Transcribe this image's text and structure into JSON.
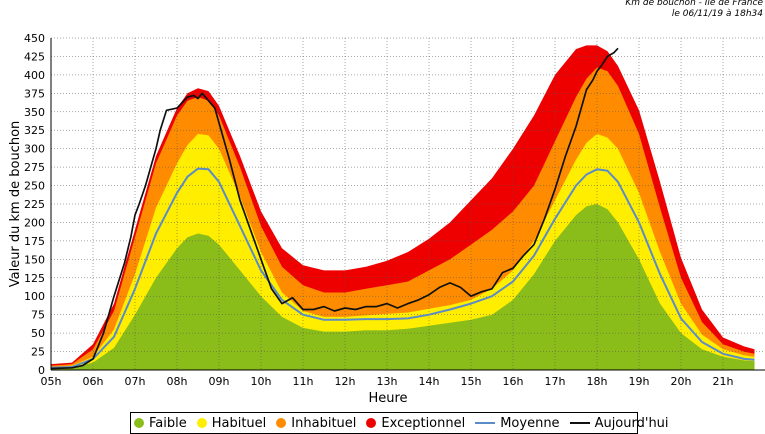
{
  "header": {
    "title": "Km de bouchon - Ile de France",
    "date": "le 06/11/19 à 18h34"
  },
  "chart_data": {
    "type": "area",
    "ylabel": "Valeur du  km de bouchon",
    "xlabel": "Heure",
    "xlim": [
      5,
      22
    ],
    "ylim": [
      0,
      450
    ],
    "y_ticks": [
      0,
      25,
      50,
      75,
      100,
      125,
      150,
      175,
      200,
      225,
      250,
      275,
      300,
      325,
      350,
      375,
      400,
      425,
      450
    ],
    "y_tick_labels": [
      "0",
      "25",
      "50",
      "75",
      "100",
      "125",
      "150",
      "175",
      "200",
      "225",
      "250",
      "275",
      "300",
      "325",
      "350",
      "375",
      "400",
      "425",
      "450"
    ],
    "x_ticks": [
      5,
      6,
      7,
      8,
      9,
      10,
      11,
      12,
      13,
      14,
      15,
      16,
      17,
      18,
      19,
      20,
      21
    ],
    "x_tick_labels": [
      "05h",
      "06h",
      "07h",
      "08h",
      "09h",
      "10h",
      "11h",
      "12h",
      "13h",
      "14h",
      "15h",
      "16h",
      "17h",
      "18h",
      "19h",
      "20h",
      "21h"
    ],
    "grid": true,
    "x": [
      5.0,
      5.5,
      6.0,
      6.5,
      7.0,
      7.5,
      8.0,
      8.25,
      8.5,
      8.75,
      9.0,
      9.5,
      10.0,
      10.5,
      11.0,
      11.5,
      12.0,
      12.5,
      13.0,
      13.5,
      14.0,
      14.5,
      15.0,
      15.5,
      16.0,
      16.5,
      17.0,
      17.5,
      17.75,
      18.0,
      18.25,
      18.5,
      19.0,
      19.5,
      20.0,
      20.5,
      21.0,
      21.5,
      21.75
    ],
    "series": [
      {
        "name": "Faible",
        "kind": "area",
        "color": "#8bbd1a",
        "values": [
          2,
          3,
          10,
          30,
          75,
          125,
          165,
          180,
          185,
          182,
          170,
          135,
          100,
          72,
          57,
          52,
          52,
          54,
          54,
          56,
          60,
          64,
          68,
          75,
          95,
          130,
          175,
          210,
          222,
          225,
          218,
          200,
          150,
          90,
          50,
          28,
          18,
          13,
          12
        ]
      },
      {
        "name": "Habituel",
        "kind": "area",
        "color": "#ffee00",
        "values": [
          4,
          6,
          18,
          55,
          130,
          220,
          280,
          305,
          320,
          318,
          300,
          235,
          160,
          105,
          80,
          72,
          72,
          74,
          76,
          78,
          83,
          88,
          95,
          110,
          135,
          175,
          230,
          285,
          308,
          320,
          315,
          300,
          240,
          160,
          90,
          48,
          28,
          20,
          18
        ]
      },
      {
        "name": "Inhabituel",
        "kind": "area",
        "color": "#ff8c00",
        "values": [
          6,
          8,
          28,
          80,
          180,
          280,
          345,
          365,
          370,
          365,
          345,
          275,
          195,
          140,
          115,
          105,
          105,
          110,
          115,
          120,
          135,
          150,
          170,
          190,
          215,
          250,
          310,
          370,
          395,
          410,
          405,
          385,
          320,
          220,
          125,
          65,
          35,
          25,
          22
        ]
      },
      {
        "name": "Exceptionnel",
        "kind": "area",
        "color": "#ee0000",
        "values": [
          8,
          10,
          35,
          90,
          190,
          290,
          355,
          375,
          382,
          378,
          358,
          290,
          215,
          165,
          142,
          135,
          135,
          140,
          148,
          160,
          178,
          200,
          230,
          260,
          300,
          345,
          400,
          435,
          440,
          440,
          432,
          412,
          352,
          255,
          152,
          82,
          44,
          32,
          28
        ]
      },
      {
        "name": "Moyenne",
        "kind": "line",
        "color": "#5b8cc7",
        "values": [
          3,
          4,
          15,
          45,
          110,
          185,
          240,
          262,
          273,
          272,
          255,
          195,
          135,
          95,
          75,
          68,
          68,
          69,
          69,
          70,
          75,
          82,
          90,
          100,
          120,
          155,
          205,
          250,
          265,
          272,
          270,
          255,
          200,
          130,
          70,
          38,
          22,
          15,
          14
        ]
      },
      {
        "name": "Aujourd'hui",
        "kind": "line",
        "color": "#111111",
        "x": [
          5.0,
          5.5,
          5.75,
          6.0,
          6.25,
          6.5,
          6.75,
          6.9,
          7.0,
          7.1,
          7.25,
          7.4,
          7.5,
          7.6,
          7.75,
          8.0,
          8.25,
          8.4,
          8.5,
          8.6,
          8.75,
          8.9,
          9.0,
          9.25,
          9.5,
          9.75,
          10.0,
          10.25,
          10.5,
          10.75,
          11.0,
          11.25,
          11.5,
          11.75,
          12.0,
          12.25,
          12.5,
          12.75,
          13.0,
          13.25,
          13.5,
          13.75,
          14.0,
          14.25,
          14.5,
          14.75,
          15.0,
          15.25,
          15.5,
          15.75,
          16.0,
          16.25,
          16.5,
          16.75,
          17.0,
          17.25,
          17.5,
          17.75,
          17.9,
          18.0,
          18.1,
          18.25,
          18.4,
          18.5
        ],
        "values": [
          2,
          3,
          6,
          15,
          50,
          100,
          145,
          180,
          210,
          225,
          250,
          280,
          300,
          325,
          352,
          355,
          370,
          372,
          368,
          375,
          365,
          355,
          335,
          285,
          230,
          190,
          150,
          110,
          90,
          98,
          82,
          82,
          86,
          80,
          84,
          82,
          86,
          86,
          90,
          84,
          90,
          95,
          102,
          112,
          118,
          112,
          100,
          106,
          110,
          132,
          138,
          155,
          170,
          205,
          245,
          290,
          330,
          380,
          393,
          405,
          412,
          425,
          430,
          436
        ]
      }
    ]
  },
  "legend": {
    "items": [
      {
        "label": "Faible",
        "color": "#8bbd1a",
        "kind": "dot"
      },
      {
        "label": "Habituel",
        "color": "#ffee00",
        "kind": "dot"
      },
      {
        "label": "Inhabituel",
        "color": "#ff8c00",
        "kind": "dot"
      },
      {
        "label": "Exceptionnel",
        "color": "#ee0000",
        "kind": "dot"
      },
      {
        "label": "Moyenne",
        "color": "#5b8cc7",
        "kind": "line"
      },
      {
        "label": "Aujourd'hui",
        "color": "#111111",
        "kind": "line"
      }
    ]
  }
}
